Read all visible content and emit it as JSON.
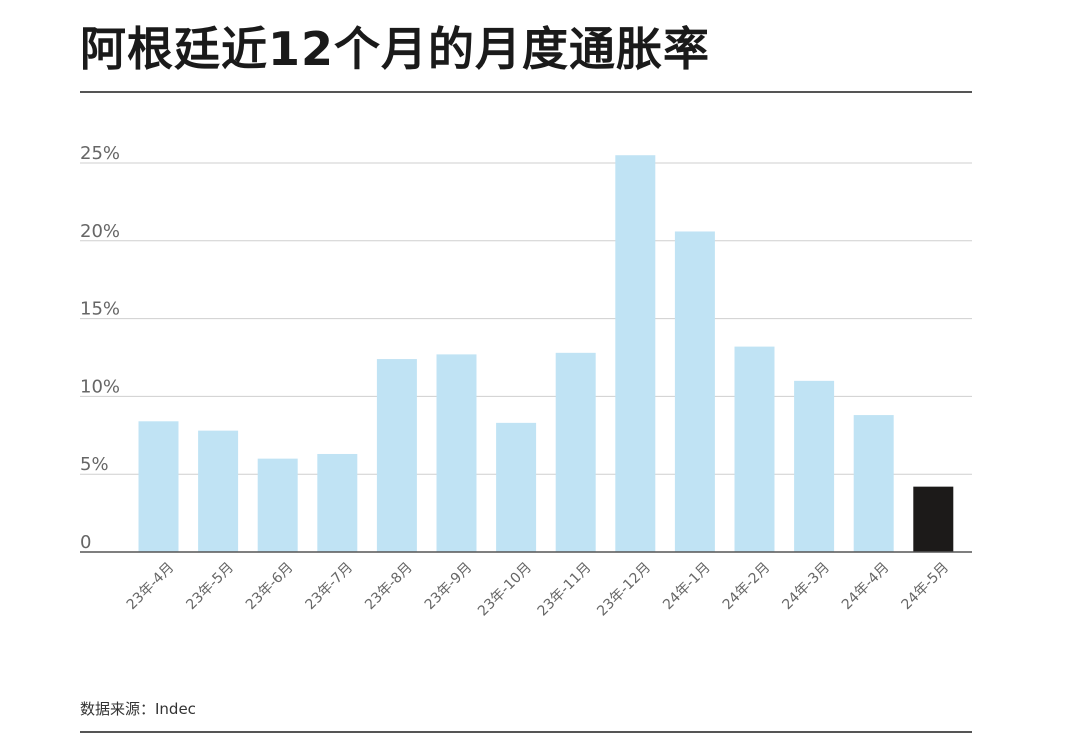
{
  "title": "阿根廷近12个月的月度通胀率",
  "source_note": "数据来源：Indec",
  "colors": {
    "bar": "#c0e3f4",
    "highlight": "#1c1a19",
    "grid": "#cfcfcf",
    "axis": "#555555",
    "tick_text": "#666666"
  },
  "chart_data": {
    "type": "bar",
    "title": "阿根廷近12个月的月度通胀率",
    "xlabel": "",
    "ylabel": "",
    "ylim": [
      0,
      25.5
    ],
    "grid": true,
    "y_ticks": [
      0,
      5,
      10,
      15,
      20,
      25
    ],
    "y_tick_labels": [
      "0",
      "5%",
      "10%",
      "15%",
      "20%",
      "25%"
    ],
    "categories": [
      "23年-4月",
      "23年-5月",
      "23年-6月",
      "23年-7月",
      "23年-8月",
      "23年-9月",
      "23年-10月",
      "23年-11月",
      "23年-12月",
      "24年-1月",
      "24年-2月",
      "24年-3月",
      "24年-4月",
      "24年-5月"
    ],
    "values": [
      8.4,
      7.8,
      6.0,
      6.3,
      12.4,
      12.7,
      8.3,
      12.8,
      25.5,
      20.6,
      13.2,
      11.0,
      8.8,
      4.2
    ],
    "highlight_index": 13
  }
}
